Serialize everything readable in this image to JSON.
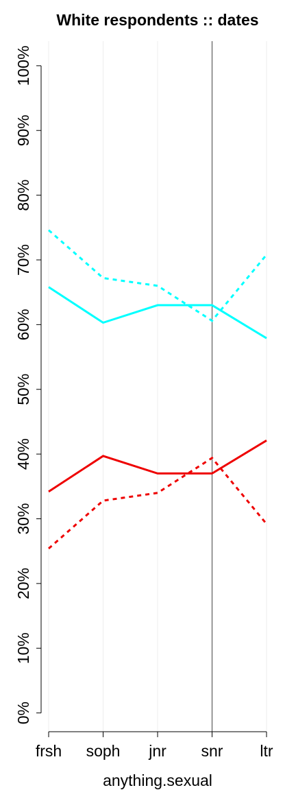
{
  "chart_data": {
    "type": "line",
    "title": "White respondents :: dates",
    "x_label": "anything.sexual",
    "categories": [
      "frsh",
      "soph",
      "jnr",
      "snr",
      "ltr"
    ],
    "series": [
      {
        "color": "#00ffff",
        "dash": false,
        "values": [
          65.8,
          60.3,
          63.0,
          63.0,
          57.9
        ]
      },
      {
        "color": "#00ffff",
        "dash": true,
        "values": [
          74.6,
          67.2,
          66.0,
          60.6,
          70.8
        ]
      },
      {
        "color": "#ee0000",
        "dash": false,
        "values": [
          34.2,
          39.7,
          37.0,
          37.0,
          42.1
        ]
      },
      {
        "color": "#ee0000",
        "dash": true,
        "values": [
          25.4,
          32.8,
          34.0,
          39.4,
          29.2
        ]
      }
    ],
    "ylim": [
      -2.9,
      103.8
    ],
    "yticks": [
      {
        "value": 0,
        "label": "0%"
      },
      {
        "value": 10,
        "label": "10%"
      },
      {
        "value": 20,
        "label": "20%"
      },
      {
        "value": 30,
        "label": "30%"
      },
      {
        "value": 40,
        "label": "40%"
      },
      {
        "value": 50,
        "label": "50%"
      },
      {
        "value": 60,
        "label": "60%"
      },
      {
        "value": 70,
        "label": "70%"
      },
      {
        "value": 80,
        "label": "80%"
      },
      {
        "value": 90,
        "label": "90%"
      },
      {
        "value": 100,
        "label": "100%"
      }
    ],
    "grid": true,
    "vline": "snr"
  }
}
